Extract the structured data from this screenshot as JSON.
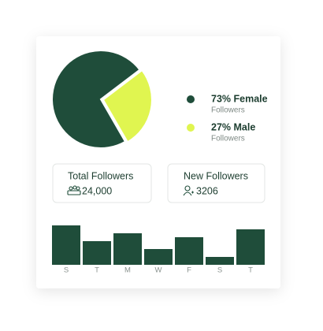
{
  "chart_data": [
    {
      "type": "pie",
      "categories": [
        "73% Female",
        "27% Male"
      ],
      "sublabels": [
        "Followers",
        "Followers"
      ],
      "values": [
        73,
        27
      ],
      "colors": [
        "#1f4d3a",
        "#e0f550"
      ]
    },
    {
      "type": "bar",
      "categories": [
        "S",
        "T",
        "M",
        "W",
        "F",
        "S",
        "T"
      ],
      "values": [
        50,
        30,
        40,
        20,
        35,
        10,
        45
      ],
      "color": "#1f4d3a"
    }
  ],
  "stats": [
    {
      "label": "Total Followers",
      "value": "24,000"
    },
    {
      "label": "New Followers",
      "value": "3206"
    }
  ]
}
